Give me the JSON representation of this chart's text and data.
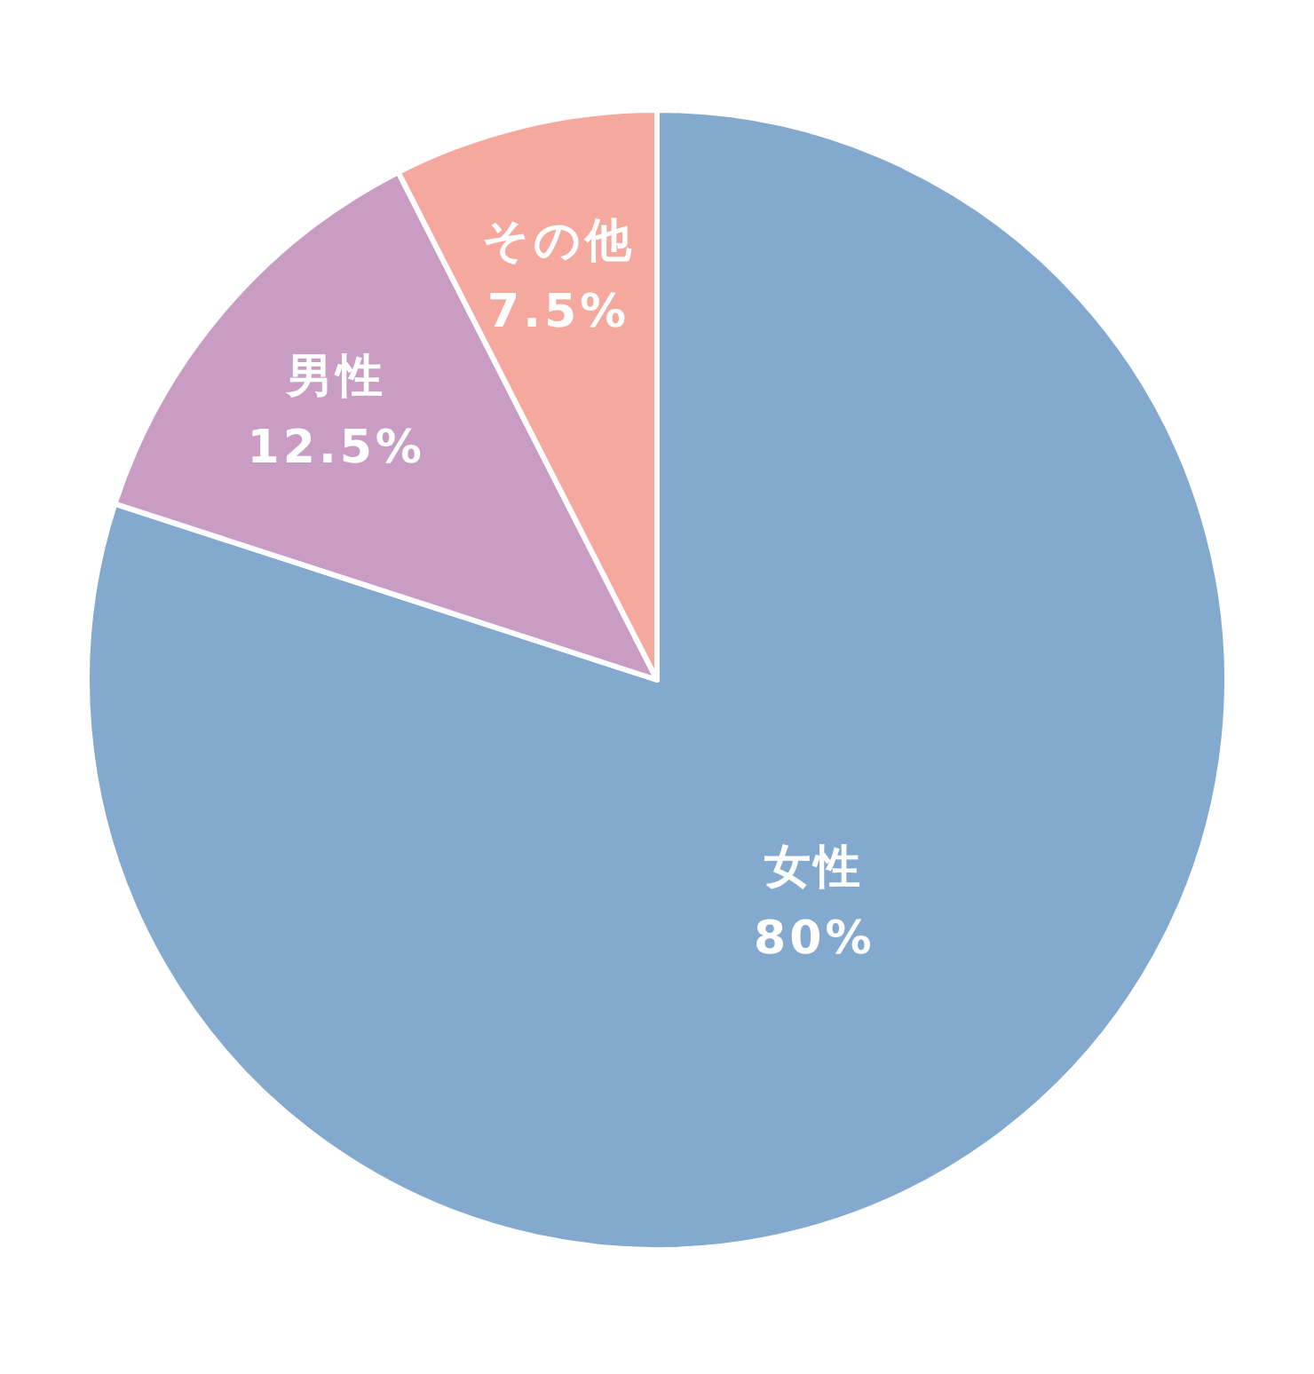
{
  "chart_data": {
    "type": "pie",
    "categories": [
      "女性",
      "男性",
      "その他"
    ],
    "values": [
      80,
      12.5,
      7.5
    ],
    "value_labels": [
      "80%",
      "12.5%",
      "7.5%"
    ],
    "colors": [
      "#84a9ce",
      "#c99dc3",
      "#f5a89e"
    ]
  }
}
